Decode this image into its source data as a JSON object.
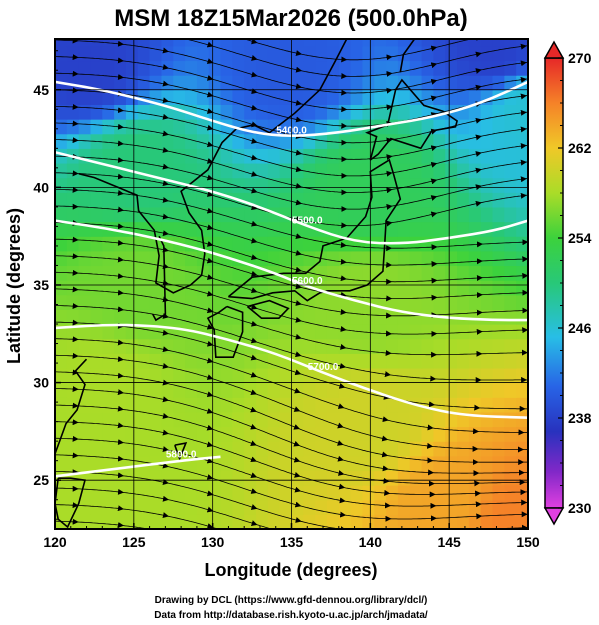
{
  "chart_data": {
    "type": "heatmap",
    "title": "MSM 18Z15Mar2026 (500.0hPa)",
    "xlabel": "Longitude (degrees)",
    "ylabel": "Latitude  (degrees)",
    "xlim": [
      120,
      150
    ],
    "ylim": [
      22.5,
      47.6
    ],
    "x_ticks": [
      120,
      125,
      130,
      135,
      140,
      145,
      150
    ],
    "y_ticks": [
      25,
      30,
      35,
      40,
      45
    ],
    "grid": true,
    "colorbar": {
      "min": 230,
      "max": 270,
      "ticks": [
        230,
        238,
        246,
        254,
        262,
        270
      ],
      "placement": "right"
    },
    "temperature_regions": [
      {
        "lon": 122,
        "lat": 46,
        "value": 238
      },
      {
        "lon": 135,
        "lat": 46,
        "value": 240
      },
      {
        "lon": 148,
        "lat": 47,
        "value": 238
      },
      {
        "lon": 150,
        "lat": 44,
        "value": 246
      },
      {
        "lon": 125,
        "lat": 41,
        "value": 250
      },
      {
        "lon": 140,
        "lat": 40,
        "value": 252
      },
      {
        "lon": 125,
        "lat": 35,
        "value": 256
      },
      {
        "lon": 140,
        "lat": 34,
        "value": 257
      },
      {
        "lon": 123,
        "lat": 30,
        "value": 258
      },
      {
        "lon": 140,
        "lat": 28,
        "value": 260
      },
      {
        "lon": 122,
        "lat": 24,
        "value": 258
      },
      {
        "lon": 145,
        "lat": 24,
        "value": 264
      },
      {
        "lon": 149,
        "lat": 23,
        "value": 266
      }
    ],
    "contours": [
      {
        "label": "5400.0",
        "points": [
          [
            120,
            45.4
          ],
          [
            123,
            45
          ],
          [
            127,
            44.2
          ],
          [
            130,
            43.4
          ],
          [
            132.5,
            42.8
          ],
          [
            135,
            42.6
          ],
          [
            138,
            42.8
          ],
          [
            141,
            43.2
          ],
          [
            144,
            43.6
          ],
          [
            147,
            44.3
          ],
          [
            150,
            45.4
          ]
        ]
      },
      {
        "label": "5500.0",
        "points": [
          [
            120,
            41.8
          ],
          [
            123,
            41.2
          ],
          [
            126,
            40.6
          ],
          [
            130,
            39.8
          ],
          [
            133,
            39
          ],
          [
            136,
            38
          ],
          [
            139,
            37.2
          ],
          [
            142,
            37.1
          ],
          [
            145,
            37.4
          ],
          [
            148,
            37.8
          ],
          [
            150,
            38.3
          ]
        ]
      },
      {
        "label": "5600.0",
        "points": [
          [
            120,
            38.3
          ],
          [
            124,
            37.8
          ],
          [
            128,
            37.1
          ],
          [
            131,
            36.4
          ],
          [
            134,
            35.6
          ],
          [
            136,
            34.9
          ],
          [
            139,
            34.2
          ],
          [
            142,
            33.6
          ],
          [
            145,
            33.3
          ],
          [
            148,
            33.2
          ],
          [
            150,
            33.2
          ]
        ]
      },
      {
        "label": "5700.0",
        "points": [
          [
            120,
            32.8
          ],
          [
            124,
            33
          ],
          [
            128,
            32.8
          ],
          [
            131,
            32.2
          ],
          [
            134,
            31.5
          ],
          [
            137,
            30.5
          ],
          [
            140,
            29.6
          ],
          [
            143,
            28.8
          ],
          [
            146,
            28.3
          ],
          [
            150,
            28.2
          ]
        ]
      },
      {
        "label": "5800.0",
        "points": [
          [
            120,
            25.2
          ],
          [
            124,
            25.6
          ],
          [
            128,
            26
          ],
          [
            130.5,
            26.2
          ]
        ]
      }
    ],
    "credits": [
      "Drawing by DCL (https://www.gfd-dennou.org/library/dcl/)",
      "Data from http://database.rish.kyoto-u.ac.jp/arch/jmadata/"
    ]
  }
}
